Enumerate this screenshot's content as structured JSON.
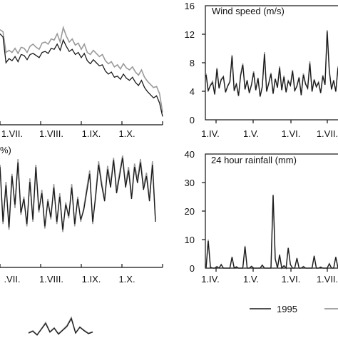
{
  "legend": {
    "entries": [
      {
        "name": "1995",
        "color": "#1a1a1a"
      },
      {
        "name": "",
        "color": "#9a9a9a"
      }
    ]
  },
  "chart_data": [
    {
      "id": "top-left",
      "type": "line",
      "title": "",
      "x_ticks": [
        "1.VII.",
        "1.VIII.",
        "1.IX.",
        "1.X."
      ],
      "series": [
        {
          "values": [
            8.8,
            8.5,
            6.0,
            6.4,
            6.2,
            6.6,
            6.1,
            6.8,
            6.7,
            6.3,
            6.8,
            6.9,
            6.7,
            6.5,
            7.0,
            7.1,
            6.9,
            7.4,
            7.3,
            7.8,
            7.2,
            8.2,
            7.6,
            7.1,
            7.3,
            6.8,
            7.0,
            6.5,
            6.9,
            6.2,
            5.9,
            6.3,
            6.0,
            5.7,
            5.8,
            5.2,
            4.9,
            5.1,
            4.6,
            4.7,
            4.4,
            4.9,
            4.5,
            4.3,
            4.6,
            4.1,
            3.8,
            4.3,
            3.6,
            3.2,
            2.9,
            2.6,
            2.8,
            2.1,
            0.8
          ]
        },
        {
          "values": [
            9.2,
            9.0,
            7.0,
            7.2,
            7.0,
            7.4,
            6.9,
            7.5,
            7.4,
            7.0,
            7.6,
            7.8,
            7.5,
            7.3,
            7.9,
            8.0,
            7.8,
            8.3,
            8.2,
            8.8,
            8.0,
            9.4,
            8.6,
            8.0,
            8.3,
            7.7,
            7.9,
            7.3,
            7.8,
            7.0,
            6.8,
            7.2,
            6.9,
            6.6,
            6.8,
            6.2,
            5.9,
            6.1,
            5.6,
            5.8,
            5.4,
            5.9,
            5.5,
            5.3,
            5.6,
            5.1,
            4.8,
            5.3,
            4.6,
            4.2,
            3.9,
            3.6,
            3.7,
            3.0,
            1.2
          ]
        }
      ]
    },
    {
      "id": "top-right",
      "type": "line",
      "title": "Wind speed (m/s)",
      "y_ticks": [
        0,
        4,
        8,
        12,
        16
      ],
      "ylim": [
        0,
        16
      ],
      "x_ticks": [
        "1.IV.",
        "1.V.",
        "1.VI.",
        "1.VII."
      ],
      "series": [
        {
          "values": [
            6.3,
            4.1,
            4.8,
            5.2,
            3.6,
            7.1,
            4.4,
            5.6,
            6.0,
            3.9,
            4.7,
            5.3,
            8.9,
            4.1,
            5.0,
            3.4,
            6.2,
            7.7,
            4.3,
            5.5,
            3.8,
            4.9,
            6.6,
            4.2,
            5.8,
            3.3,
            4.6,
            9.2,
            4.0,
            5.1,
            6.4,
            3.7,
            5.7,
            4.5,
            7.3,
            4.2,
            6.0,
            3.9,
            5.4,
            4.8,
            6.8,
            4.1,
            4.7,
            5.9,
            3.5,
            6.3,
            5.0,
            4.4,
            7.9,
            4.0,
            5.6,
            4.6,
            5.2,
            3.8,
            6.1,
            4.9,
            12.4,
            6.8,
            4.3,
            5.5,
            4.0,
            7.3,
            5.0
          ]
        },
        {
          "values": [
            6.5,
            4.0,
            4.9,
            5.4,
            3.5,
            7.3,
            4.5,
            5.7,
            6.1,
            3.8,
            4.8,
            5.4,
            9.1,
            4.0,
            5.1,
            3.3,
            6.4,
            7.9,
            4.2,
            5.6,
            3.7,
            5.0,
            6.8,
            4.1,
            5.9,
            3.2,
            4.7,
            9.5,
            3.9,
            5.2,
            6.6,
            3.6,
            5.8,
            4.6,
            7.5,
            4.1,
            6.2,
            3.8,
            5.5,
            4.9,
            7.0,
            4.0,
            4.8,
            6.0,
            3.4,
            6.5,
            5.1,
            4.5,
            8.2,
            3.9,
            5.7,
            4.7,
            5.3,
            3.7,
            6.3,
            5.0,
            12.6,
            7.0,
            4.2,
            5.6,
            3.9,
            7.5,
            5.1
          ]
        }
      ]
    },
    {
      "id": "middle-left",
      "type": "line",
      "title": "%)",
      "x_ticks": [
        ".VII.",
        "1.VIII.",
        "1.IX.",
        "1.X."
      ],
      "series": [
        {
          "values": [
            88,
            40,
            72,
            35,
            80,
            55,
            92,
            48,
            60,
            38,
            75,
            42,
            88,
            50,
            65,
            36,
            58,
            44,
            70,
            40,
            62,
            33,
            55,
            45,
            70,
            38,
            60,
            42,
            50,
            66,
            82,
            40,
            62,
            90,
            72,
            58,
            86,
            70,
            94,
            65,
            80,
            96,
            70,
            85,
            60,
            88,
            74,
            92,
            68,
            80,
            58,
            90,
            40
          ]
        },
        {
          "values": [
            90,
            38,
            75,
            33,
            82,
            52,
            95,
            46,
            62,
            36,
            78,
            40,
            90,
            48,
            68,
            34,
            60,
            42,
            73,
            38,
            65,
            31,
            57,
            43,
            73,
            36,
            62,
            40,
            52,
            69,
            85,
            38,
            65,
            93,
            75,
            60,
            89,
            73,
            96,
            68,
            83,
            98,
            73,
            88,
            62,
            91,
            77,
            95,
            71,
            83,
            60,
            93,
            42
          ]
        }
      ]
    },
    {
      "id": "middle-right",
      "type": "line",
      "title": "24 hour rainfall (mm)",
      "y_ticks": [
        0,
        10,
        20,
        30,
        40
      ],
      "ylim": [
        0,
        40
      ],
      "x_ticks": [
        "1.IV.",
        "1.V.",
        "1.VI.",
        "1.VII."
      ],
      "series": [
        {
          "values": [
            0,
            9.5,
            0.3,
            0,
            0,
            0.5,
            0,
            1.2,
            0,
            0,
            0,
            0,
            3.8,
            0,
            0.4,
            0,
            0,
            0,
            7.5,
            0,
            0,
            0.6,
            0,
            0,
            0,
            0,
            1.0,
            0,
            0,
            0,
            0,
            25.5,
            3.2,
            0,
            4.6,
            0,
            0.8,
            0,
            7.0,
            1.2,
            0,
            0,
            3.4,
            0,
            0,
            0.5,
            0,
            0,
            0,
            0,
            4.2,
            0,
            0,
            0.3,
            0,
            0,
            0,
            1.5,
            0,
            0,
            3.8,
            0,
            0
          ]
        },
        {
          "values": [
            0,
            10.0,
            0.4,
            0,
            0,
            0.6,
            0,
            1.3,
            0,
            0,
            0,
            0,
            4.0,
            0,
            0.5,
            0,
            0,
            0,
            7.8,
            0,
            0,
            0.7,
            0,
            0,
            0,
            0,
            1.1,
            0,
            0,
            0,
            0,
            25.8,
            3.4,
            0,
            4.8,
            0,
            0.9,
            0,
            7.2,
            1.3,
            0,
            0,
            3.6,
            0,
            0,
            0.6,
            0,
            0,
            0,
            0,
            4.4,
            0,
            0,
            0.4,
            0,
            0,
            0,
            1.6,
            0,
            0,
            4.0,
            0,
            0
          ]
        }
      ]
    },
    {
      "id": "bottom-left",
      "type": "line",
      "title": "",
      "series": [
        {
          "values": [
            10,
            14,
            6,
            18,
            30,
            12,
            20,
            8,
            16,
            24,
            40,
            10,
            22,
            15,
            9,
            12
          ]
        },
        {
          "values": [
            11,
            15,
            7,
            19,
            32,
            13,
            21,
            9,
            17,
            26,
            42,
            11,
            23,
            16,
            10,
            13
          ]
        }
      ]
    }
  ]
}
